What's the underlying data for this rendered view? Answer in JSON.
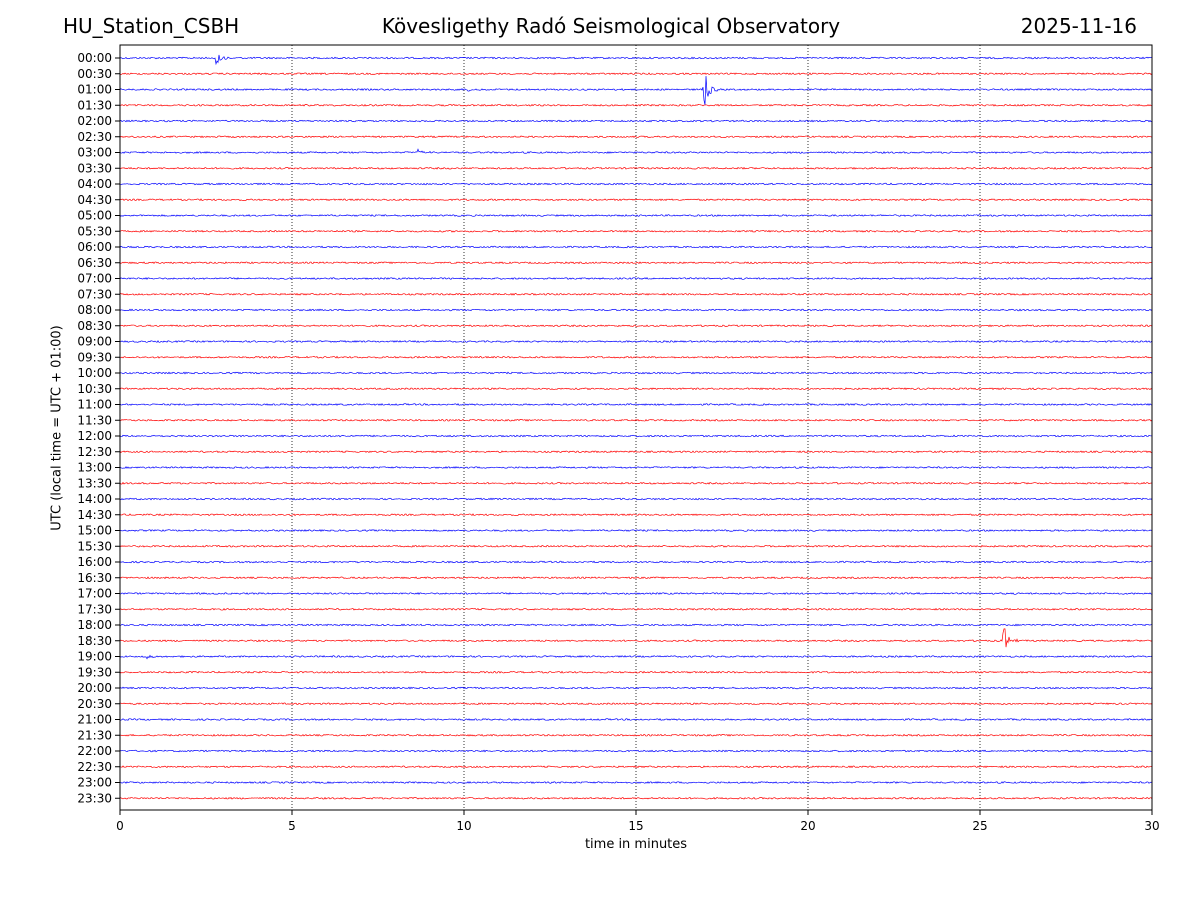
{
  "header": {
    "station": "HU_Station_CSBH",
    "title": "Kövesligethy Radó Seismological Observatory",
    "date": "2025-11-16"
  },
  "chart_data": {
    "type": "line",
    "title": "Kövesligethy Radó Seismological Observatory",
    "xlabel": "time in minutes",
    "ylabel": "UTC (local time = UTC + 01:00)",
    "xlim": [
      0,
      30
    ],
    "xticks": [
      "0",
      "5",
      "10",
      "15",
      "20",
      "25",
      "30"
    ],
    "grid": "vertical dotted lines at each x tick",
    "colors": {
      "even_rows": "#0000ff",
      "odd_rows": "#ff0000"
    },
    "rows": [
      "00:00",
      "00:30",
      "01:00",
      "01:30",
      "02:00",
      "02:30",
      "03:00",
      "03:30",
      "04:00",
      "04:30",
      "05:00",
      "05:30",
      "06:00",
      "06:30",
      "07:00",
      "07:30",
      "08:00",
      "08:30",
      "09:00",
      "09:30",
      "10:00",
      "10:30",
      "11:00",
      "11:30",
      "12:00",
      "12:30",
      "13:00",
      "13:30",
      "14:00",
      "14:30",
      "15:00",
      "15:30",
      "16:00",
      "16:30",
      "17:00",
      "17:30",
      "18:00",
      "18:30",
      "19:00",
      "19:30",
      "20:00",
      "20:30",
      "21:00",
      "21:30",
      "22:00",
      "22:30",
      "23:00",
      "23:30"
    ],
    "events": [
      {
        "row": "00:00",
        "minute": 2.8,
        "amplitude": 0.55
      },
      {
        "row": "01:00",
        "minute": 10.1,
        "amplitude": 0.12
      },
      {
        "row": "01:00",
        "minute": 17.0,
        "amplitude": 1.2
      },
      {
        "row": "03:00",
        "minute": 8.7,
        "amplitude": 0.4
      },
      {
        "row": "18:30",
        "minute": 25.7,
        "amplitude": 1.0
      },
      {
        "row": "19:00",
        "minute": 0.8,
        "amplitude": 0.3
      },
      {
        "row": "20:00",
        "minute": 11.2,
        "amplitude": 0.1
      }
    ]
  }
}
